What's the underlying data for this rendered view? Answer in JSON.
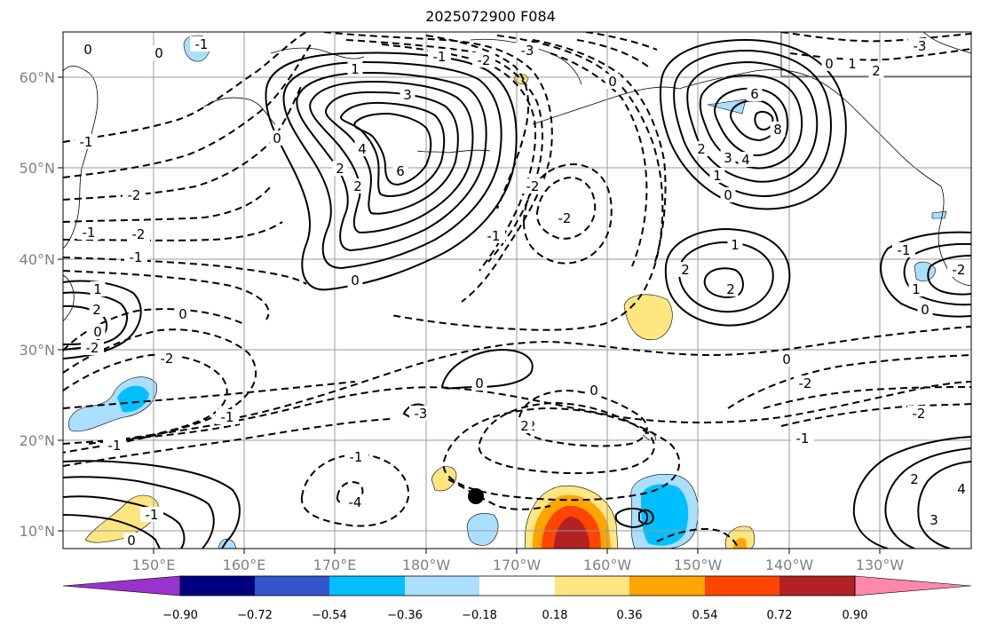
{
  "title": "2025072900 F084",
  "lon_labels": [
    "150°E",
    "160°E",
    "170°E",
    "180°W",
    "170°W",
    "160°W",
    "150°W",
    "140°W",
    "130°W"
  ],
  "lat_labels": [
    "60°N",
    "50°N",
    "40°N",
    "30°N",
    "20°N",
    "10°N"
  ],
  "colorbar": {
    "colors": [
      "#9933cc",
      "#000080",
      "#3355cc",
      "#00bfff",
      "#aadfff",
      "#ffffff",
      "#ffe680",
      "#ffa500",
      "#ff4500",
      "#b22222",
      "#ff88aa"
    ],
    "tick_labels": [
      "−0.90",
      "−0.72",
      "−0.54",
      "−0.36",
      "−0.18",
      "0.18",
      "0.36",
      "0.54",
      "0.72",
      "0.90"
    ]
  },
  "contour_labels": {
    "n0": "0",
    "n1": "0",
    "n2": "-1",
    "n3": "-3",
    "n4": "-1",
    "n5": "-2",
    "n6": "1",
    "n7": "3",
    "n8": "4",
    "n9": "6",
    "n10": "2",
    "n11": "2",
    "n12": "0",
    "n13": "-2",
    "n14": "-1",
    "n15": "-2",
    "n16": "-1",
    "n17": "1",
    "n18": "2",
    "n19": "0",
    "n20": "-2",
    "n21": "-1",
    "n22": "-2",
    "n23": "-1",
    "n24": "0",
    "n25": "-1",
    "n26": "0",
    "n27": "0",
    "n28": "-3",
    "n29": "-1",
    "n30": "-4",
    "n31": "-2",
    "n32": "-1",
    "n33": "-2",
    "n34": "6",
    "n35": "8",
    "n36": "2",
    "n37": "3",
    "n38": "4",
    "n39": "1",
    "n40": "0",
    "n41": "1",
    "n42": "2",
    "n43": "2",
    "n44": "0",
    "n45": "-2",
    "n46": "-1",
    "n47": "1",
    "n48": "-2",
    "n49": "-3",
    "n50": "0",
    "n51": "1",
    "n52": "2",
    "n53": "0",
    "n54": "0",
    "n55": "-2",
    "n56": "-1",
    "n57": "-2",
    "n58": "0",
    "n59": "-1",
    "n60": "2",
    "n61": "4",
    "n62": "3",
    "n63": "-1",
    "n64": "2",
    "n65": "0"
  }
}
